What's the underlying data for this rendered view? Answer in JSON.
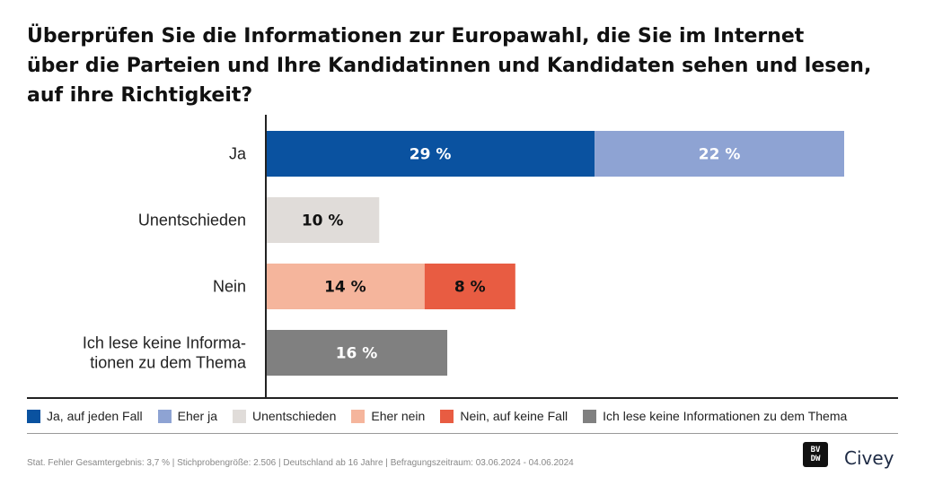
{
  "title_lines": [
    "Überprüfen Sie die Informationen zur Europawahl, die Sie im Internet",
    "über die Parteien und Ihre Kandidatinnen und Kandidaten sehen und lesen,",
    "auf ihre Richtigkeit?"
  ],
  "chart_data": {
    "type": "bar",
    "orientation": "horizontal",
    "stacked": true,
    "value_unit": "%",
    "xlim": [
      0,
      51
    ],
    "categories": [
      {
        "label_lines": [
          "Ja"
        ],
        "segments": [
          {
            "series": "Ja, auf jeden Fall",
            "value": 29,
            "label": "29 %"
          },
          {
            "series": "Eher ja",
            "value": 22,
            "label": "22 %"
          }
        ]
      },
      {
        "label_lines": [
          "Unentschieden"
        ],
        "segments": [
          {
            "series": "Unentschieden",
            "value": 10,
            "label": "10 %"
          }
        ]
      },
      {
        "label_lines": [
          "Nein"
        ],
        "segments": [
          {
            "series": "Eher nein",
            "value": 14,
            "label": "14 %"
          },
          {
            "series": "Nein, auf keine Fall",
            "value": 8,
            "label": "8 %"
          }
        ]
      },
      {
        "label_lines": [
          "Ich lese keine Informa-",
          "tionen zu dem Thema"
        ],
        "segments": [
          {
            "series": "Ich lese keine Informationen zu dem Thema",
            "value": 16,
            "label": "16 %"
          }
        ]
      }
    ],
    "series": [
      {
        "name": "Ja, auf jeden Fall",
        "color": "#0a52a0",
        "label_color": "#ffffff"
      },
      {
        "name": "Eher ja",
        "color": "#8ea3d3",
        "label_color": "#ffffff"
      },
      {
        "name": "Unentschieden",
        "color": "#e0dcd9",
        "label_color": "#111111"
      },
      {
        "name": "Eher nein",
        "color": "#f5b59c",
        "label_color": "#111111"
      },
      {
        "name": "Nein, auf keine Fall",
        "color": "#e85c42",
        "label_color": "#111111"
      },
      {
        "name": "Ich lese keine Informationen zu dem Thema",
        "color": "#808080",
        "label_color": "#ffffff"
      }
    ],
    "legend_position": "bottom"
  },
  "footer": "Stat. Fehler Gesamtergebnis: 3,7 % | Stichprobengröße: 2.506 | Deutschland ab 16 Jahre | Befragungszeitraum: 03.06.2024 - 04.06.2024",
  "logos": {
    "badge_lines": [
      "BV",
      "DW"
    ],
    "brand": "Civey"
  }
}
